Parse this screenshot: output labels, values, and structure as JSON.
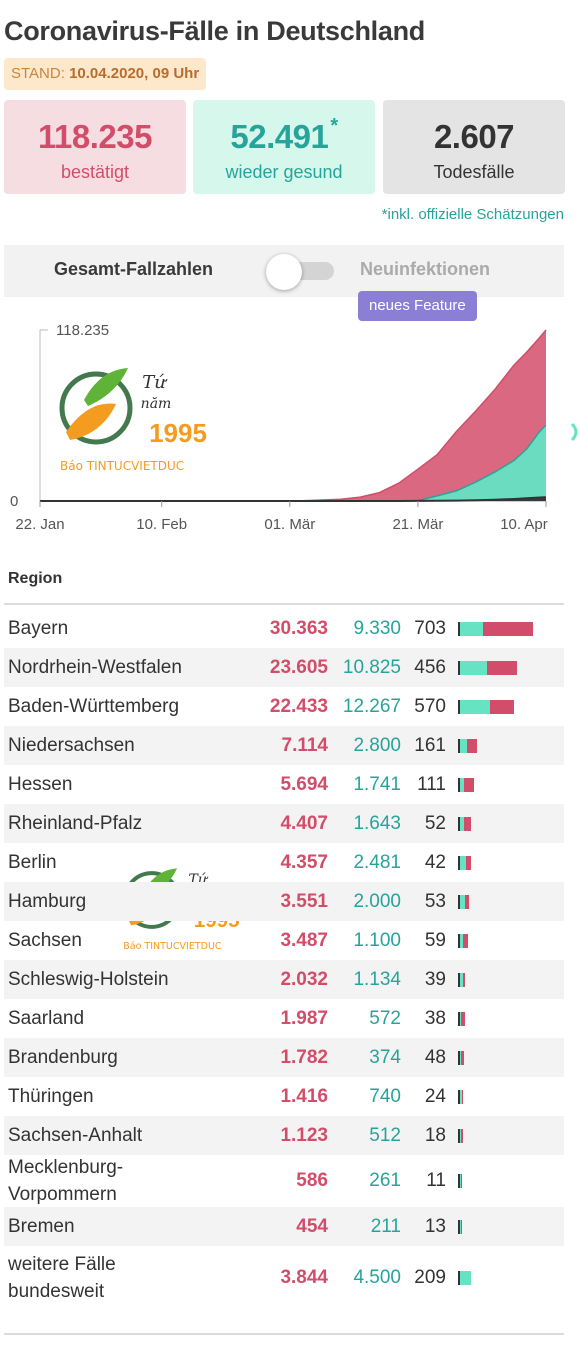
{
  "header": {
    "title": "Coronavirus-Fälle in Deutschland",
    "stand_label": "STAND:",
    "stand_value": "10.04.2020, 09 Uhr"
  },
  "summary": {
    "confirmed": {
      "value": "118.235",
      "label": "bestätigt"
    },
    "recovered": {
      "value": "52.491",
      "star": "*",
      "label": "wieder gesund"
    },
    "deaths": {
      "value": "2.607",
      "label": "Todesfälle"
    },
    "footnote": "*inkl. offizielle Schätzungen"
  },
  "toggle": {
    "left_label": "Gesamt-Fallzahlen",
    "right_label": "Neuinfektionen",
    "state": "off",
    "badge": "neues Feature"
  },
  "watermark": {
    "line1": "Tứ",
    "line2": "năm",
    "year": "1995",
    "brand": "Báo TINTUCVIETDUC"
  },
  "colors": {
    "confirmed": "#d24d6a",
    "recovered": "#27a49a",
    "recovered_fill": "#66e3c3",
    "deaths": "#333333"
  },
  "chart_data": {
    "type": "area",
    "y_ticks": [
      "0",
      "118.235"
    ],
    "ylim": [
      0,
      118235
    ],
    "x_ticks": [
      "22. Jan",
      "10. Feb",
      "01. Mär",
      "21. Mär",
      "10. Apr"
    ],
    "x_dates": [
      "2020-01-22",
      "2020-01-31",
      "2020-02-10",
      "2020-02-20",
      "2020-02-25",
      "2020-02-29",
      "2020-03-03",
      "2020-03-06",
      "2020-03-09",
      "2020-03-12",
      "2020-03-15",
      "2020-03-18",
      "2020-03-21",
      "2020-03-24",
      "2020-03-27",
      "2020-03-30",
      "2020-04-02",
      "2020-04-05",
      "2020-04-07",
      "2020-04-09",
      "2020-04-10"
    ],
    "series": [
      {
        "values": [
          0,
          5,
          16,
          16,
          18,
          80,
          200,
          700,
          1200,
          2700,
          5800,
          12300,
          22000,
          32000,
          48000,
          62000,
          77000,
          94000,
          103000,
          113000,
          118235
        ]
      },
      {
        "values": [
          0,
          0,
          0,
          12,
          14,
          16,
          16,
          20,
          25,
          40,
          60,
          100,
          300,
          3500,
          7000,
          13000,
          20000,
          28000,
          36000,
          48000,
          52491
        ]
      },
      {
        "values": [
          0,
          0,
          0,
          0,
          0,
          0,
          0,
          0,
          2,
          5,
          12,
          30,
          80,
          150,
          300,
          550,
          900,
          1400,
          1900,
          2400,
          2607
        ]
      }
    ],
    "grid": false,
    "legend": "none"
  },
  "table": {
    "header": "Region",
    "rows": [
      {
        "name": "Bayern",
        "confirmed": "30.363",
        "recovered": "9.330",
        "deaths": "703",
        "c": 30363,
        "r": 9330,
        "d": 703
      },
      {
        "name": "Nordrhein-Westfalen",
        "confirmed": "23.605",
        "recovered": "10.825",
        "deaths": "456",
        "c": 23605,
        "r": 10825,
        "d": 456
      },
      {
        "name": "Baden-Württemberg",
        "confirmed": "22.433",
        "recovered": "12.267",
        "deaths": "570",
        "c": 22433,
        "r": 12267,
        "d": 570
      },
      {
        "name": "Niedersachsen",
        "confirmed": "7.114",
        "recovered": "2.800",
        "deaths": "161",
        "c": 7114,
        "r": 2800,
        "d": 161
      },
      {
        "name": "Hessen",
        "confirmed": "5.694",
        "recovered": "1.741",
        "deaths": "111",
        "c": 5694,
        "r": 1741,
        "d": 111
      },
      {
        "name": "Rheinland-Pfalz",
        "confirmed": "4.407",
        "recovered": "1.643",
        "deaths": "52",
        "c": 4407,
        "r": 1643,
        "d": 52
      },
      {
        "name": "Berlin",
        "confirmed": "4.357",
        "recovered": "2.481",
        "deaths": "42",
        "c": 4357,
        "r": 2481,
        "d": 42
      },
      {
        "name": "Hamburg",
        "confirmed": "3.551",
        "recovered": "2.000",
        "deaths": "53",
        "c": 3551,
        "r": 2000,
        "d": 53
      },
      {
        "name": "Sachsen",
        "confirmed": "3.487",
        "recovered": "1.100",
        "deaths": "59",
        "c": 3487,
        "r": 1100,
        "d": 59
      },
      {
        "name": "Schleswig-Holstein",
        "confirmed": "2.032",
        "recovered": "1.134",
        "deaths": "39",
        "c": 2032,
        "r": 1134,
        "d": 39
      },
      {
        "name": "Saarland",
        "confirmed": "1.987",
        "recovered": "572",
        "deaths": "38",
        "c": 1987,
        "r": 572,
        "d": 38
      },
      {
        "name": "Brandenburg",
        "confirmed": "1.782",
        "recovered": "374",
        "deaths": "48",
        "c": 1782,
        "r": 374,
        "d": 48
      },
      {
        "name": "Thüringen",
        "confirmed": "1.416",
        "recovered": "740",
        "deaths": "24",
        "c": 1416,
        "r": 740,
        "d": 24
      },
      {
        "name": "Sachsen-Anhalt",
        "confirmed": "1.123",
        "recovered": "512",
        "deaths": "18",
        "c": 1123,
        "r": 512,
        "d": 18
      },
      {
        "name": "Mecklenburg-Vorpommern",
        "name_lines": [
          "Mecklenburg-",
          "Vorpommern"
        ],
        "confirmed": "586",
        "recovered": "261",
        "deaths": "11",
        "c": 586,
        "r": 261,
        "d": 11
      },
      {
        "name": "Bremen",
        "confirmed": "454",
        "recovered": "211",
        "deaths": "13",
        "c": 454,
        "r": 211,
        "d": 13
      },
      {
        "name": "weitere Fälle bundesweit",
        "name_lines": [
          "weitere Fälle",
          "bundesweit"
        ],
        "confirmed": "3.844",
        "recovered": "4.500",
        "deaths": "209",
        "c": 3844,
        "r": 4500,
        "d": 209
      }
    ]
  }
}
